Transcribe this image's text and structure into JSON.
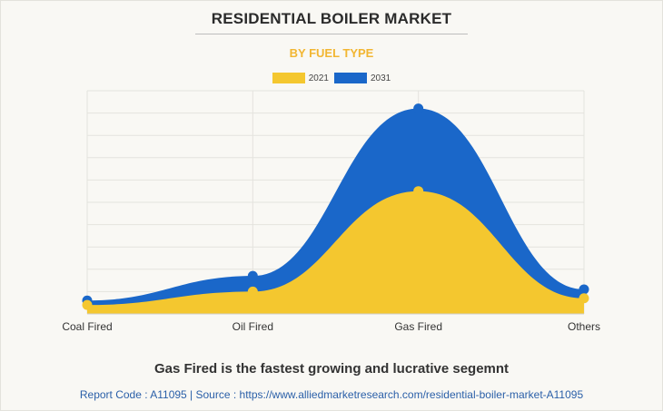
{
  "header": {
    "title": "RESIDENTIAL BOILER MARKET",
    "subtitle": "BY FUEL TYPE"
  },
  "chart_data": {
    "type": "area",
    "categories": [
      "Coal Fired",
      "Oil Fired",
      "Gas Fired",
      "Others"
    ],
    "series": [
      {
        "name": "2021",
        "color": "#f4c72f",
        "values": [
          4,
          10,
          55,
          7
        ]
      },
      {
        "name": "2031",
        "color": "#1a67c9",
        "values": [
          6,
          17,
          92,
          11
        ]
      }
    ],
    "ylim": [
      0,
      100
    ],
    "grid": true,
    "legend": "top-center",
    "xlabel": "",
    "ylabel": ""
  },
  "footer": {
    "note": "Gas Fired is the fastest growing and lucrative segemnt",
    "source": "Report Code : A11095  |  Source : https://www.alliedmarketresearch.com/residential-boiler-market-A11095"
  }
}
